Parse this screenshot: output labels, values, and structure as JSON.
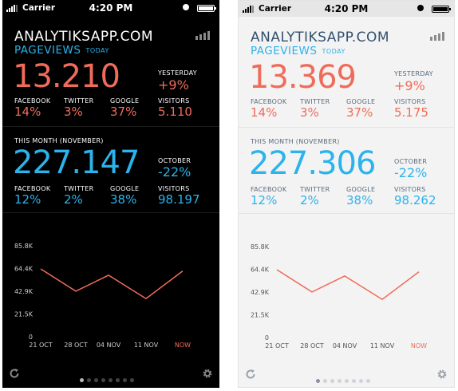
{
  "status_bar": {
    "carrier": "Carrier",
    "time": "4:20 PM"
  },
  "app": {
    "brand": "ANALYTIKSAPP.COM"
  },
  "phones": [
    {
      "pageviews_label": "PAGEVIEWS",
      "today_label": "TODAY",
      "today_value": "13.210",
      "yesterday_label": "YESTERDAY",
      "yesterday_value": "+9%",
      "today_breakdown": [
        {
          "label": "FACEBOOK",
          "value": "14%"
        },
        {
          "label": "TWITTER",
          "value": "3%"
        },
        {
          "label": "GOOGLE",
          "value": "37%"
        },
        {
          "label": "VISITORS",
          "value": "5.110"
        }
      ],
      "month_label": "THIS MONTH  (NOVEMBER)",
      "month_value": "227.147",
      "prev_month_label": "OCTOBER",
      "prev_month_value": "-22%",
      "month_breakdown": [
        {
          "label": "FACEBOOK",
          "value": "12%"
        },
        {
          "label": "TWITTER",
          "value": "2%"
        },
        {
          "label": "GOOGLE",
          "value": "38%"
        },
        {
          "label": "VISITORS",
          "value": "98.197"
        }
      ]
    },
    {
      "pageviews_label": "PAGEVIEWS",
      "today_label": "TODAY",
      "today_value": "13.369",
      "yesterday_label": "YESTERDAY",
      "yesterday_value": "+9%",
      "today_breakdown": [
        {
          "label": "FACEBOOK",
          "value": "14%"
        },
        {
          "label": "TWITTER",
          "value": "3%"
        },
        {
          "label": "GOOGLE",
          "value": "37%"
        },
        {
          "label": "VISITORS",
          "value": "5.175"
        }
      ],
      "month_label": "THIS MONTH  (NOVEMBER)",
      "month_value": "227.306",
      "prev_month_label": "OCTOBER",
      "prev_month_value": "-22%",
      "month_breakdown": [
        {
          "label": "FACEBOOK",
          "value": "12%"
        },
        {
          "label": "TWITTER",
          "value": "2%"
        },
        {
          "label": "GOOGLE",
          "value": "38%"
        },
        {
          "label": "VISITORS",
          "value": "98.262"
        }
      ]
    }
  ],
  "chart": {
    "y_ticks": [
      "85.8K",
      "64.4K",
      "42.9K",
      "21.5K",
      "0"
    ],
    "y_tick_values": [
      85800,
      64400,
      42900,
      21500,
      0
    ],
    "x_ticks": [
      "21 OCT",
      "28 OCT",
      "04 NOV",
      "11 NOV",
      "NOW"
    ],
    "values": [
      64000,
      43000,
      58000,
      36000,
      62000
    ],
    "ylim": [
      0,
      85800
    ],
    "line_color": "#f06c5a"
  },
  "pager": {
    "count": 8,
    "active": 0
  },
  "colors": {
    "accent_red": "#f06c5a",
    "accent_blue": "#2bb3ec"
  },
  "icons": {
    "refresh": "refresh-icon",
    "settings": "gear-icon",
    "stats": "bar-chart-icon"
  }
}
